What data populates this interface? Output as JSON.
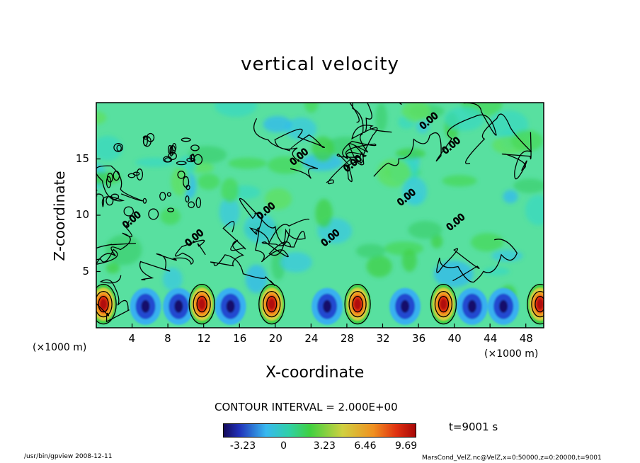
{
  "chart_data": {
    "type": "heatmap",
    "title": "vertical velocity",
    "xlabel": "X-coordinate",
    "ylabel": "Z-coordinate",
    "x_unit_left": "(×1000 m)",
    "x_unit_right": "(×1000 m)",
    "xlim": [
      0,
      50
    ],
    "ylim": [
      0,
      20
    ],
    "x_ticks": [
      4,
      8,
      12,
      16,
      20,
      24,
      28,
      32,
      36,
      40,
      44,
      48
    ],
    "y_ticks": [
      5,
      10,
      15
    ],
    "contour_label": "CONTOUR INTERVAL = 2.000E+00",
    "contour_line_labels": [
      "0.00"
    ],
    "time_label": "t=9001 s",
    "colorbar": {
      "ticks": [
        "-3.23",
        "0",
        "3.23",
        "6.46",
        "9.69"
      ],
      "range": [
        -4.8,
        10.5
      ],
      "colors": [
        "#1a0a6e",
        "#2040c8",
        "#38b8f0",
        "#28c8a0",
        "#40d040",
        "#c8c840",
        "#f0a020",
        "#e83010",
        "#b80808"
      ]
    },
    "updraft_cores_x": [
      0.8,
      11.8,
      19.6,
      29.2,
      38.8,
      49.6
    ],
    "downdraft_cores_x": [
      5.5,
      9.2,
      15.0,
      25.8,
      34.5,
      42.0,
      45.5
    ]
  },
  "footer_left": "/usr/bin/gpview   2008-12-11",
  "footer_right": "MarsCond_VelZ.nc@VelZ,x=0:50000,z=0:20000,t=9001"
}
